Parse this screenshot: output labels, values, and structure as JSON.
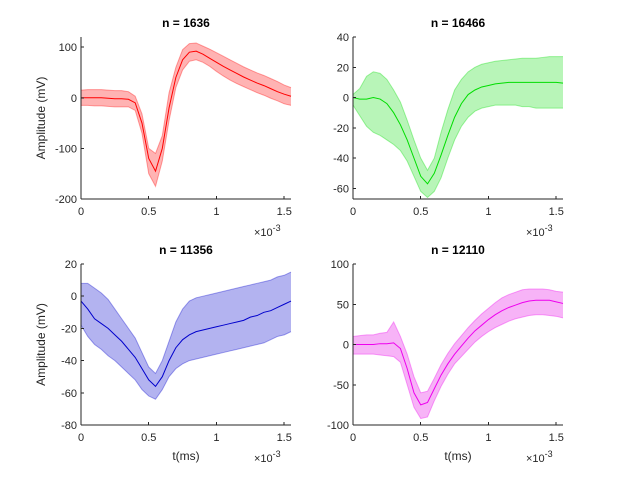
{
  "chart_data": [
    {
      "type": "area",
      "title": "n = 1636",
      "xlabel": "",
      "ylabel": "Amplitude (mV)",
      "x_multiplier": "×10",
      "x_exponent": "-3",
      "xlim": [
        0,
        0.00155
      ],
      "ylim": [
        -200,
        120
      ],
      "xticks": [
        0,
        0.0005,
        0.001,
        0.0015
      ],
      "xticklabels": [
        "0",
        "0.5",
        "1",
        "1.5"
      ],
      "yticks": [
        -200,
        -100,
        0,
        100
      ],
      "yticklabels": [
        "-200",
        "-100",
        "0",
        "100"
      ],
      "color": "#ff0000",
      "fill_color": "#ffb3b3",
      "x": [
        0,
        5e-05,
        0.0001,
        0.00015,
        0.0002,
        0.00025,
        0.0003,
        0.00035,
        0.0004,
        0.00045,
        0.0005,
        0.00055,
        0.0006,
        0.00065,
        0.0007,
        0.00075,
        0.0008,
        0.00085,
        0.0009,
        0.00095,
        0.001,
        0.00105,
        0.0011,
        0.00115,
        0.0012,
        0.00125,
        0.0013,
        0.00135,
        0.0014,
        0.00145,
        0.0015,
        0.00155
      ],
      "mean": [
        0,
        0,
        0,
        0,
        -1,
        -2,
        -2,
        -3,
        -10,
        -50,
        -120,
        -145,
        -100,
        -20,
        40,
        75,
        90,
        92,
        86,
        78,
        70,
        62,
        55,
        48,
        41,
        35,
        29,
        24,
        18,
        12,
        7,
        3
      ],
      "upper": [
        15,
        16,
        16,
        16,
        15,
        14,
        14,
        12,
        3,
        -32,
        -100,
        -110,
        -75,
        10,
        60,
        95,
        107,
        108,
        102,
        96,
        89,
        82,
        75,
        68,
        61,
        55,
        49,
        44,
        38,
        32,
        25,
        20
      ],
      "lower": [
        -15,
        -15,
        -16,
        -16,
        -17,
        -18,
        -18,
        -18,
        -25,
        -70,
        -150,
        -175,
        -125,
        -45,
        20,
        55,
        72,
        75,
        70,
        62,
        52,
        43,
        35,
        28,
        22,
        16,
        10,
        5,
        -1,
        -6,
        -12,
        -15
      ]
    },
    {
      "type": "area",
      "title": "n = 16466",
      "xlabel": "",
      "ylabel": "",
      "x_multiplier": "×10",
      "x_exponent": "-3",
      "xlim": [
        0,
        0.00155
      ],
      "ylim": [
        -67,
        40
      ],
      "xticks": [
        0,
        0.0005,
        0.001,
        0.0015
      ],
      "xticklabels": [
        "0",
        "0.5",
        "1",
        "1.5"
      ],
      "yticks": [
        -60,
        -40,
        -20,
        0,
        20,
        40
      ],
      "yticklabels": [
        "-60",
        "-40",
        "-20",
        "0",
        "20",
        "40"
      ],
      "color": "#00dd00",
      "fill_color": "#b8f5b8",
      "x": [
        0,
        5e-05,
        0.0001,
        0.00015,
        0.0002,
        0.00025,
        0.0003,
        0.00035,
        0.0004,
        0.00045,
        0.0005,
        0.00055,
        0.0006,
        0.00065,
        0.0007,
        0.00075,
        0.0008,
        0.00085,
        0.0009,
        0.00095,
        0.001,
        0.00105,
        0.0011,
        0.00115,
        0.0012,
        0.00125,
        0.0013,
        0.00135,
        0.0014,
        0.00145,
        0.0015,
        0.00155
      ],
      "mean": [
        0,
        -1,
        -1,
        0,
        -1,
        -4,
        -10,
        -18,
        -28,
        -40,
        -52,
        -57,
        -50,
        -38,
        -25,
        -13,
        -4,
        2,
        5,
        7,
        8,
        9,
        9.5,
        10,
        10,
        10,
        10,
        10,
        10,
        10,
        10,
        9.5
      ],
      "upper": [
        2,
        6,
        14,
        17,
        16,
        12,
        5,
        -3,
        -15,
        -28,
        -40,
        -48,
        -40,
        -23,
        -8,
        5,
        12,
        17,
        20,
        22,
        23,
        24,
        24.5,
        25,
        25.5,
        26,
        26,
        26,
        26.5,
        27,
        27,
        27
      ],
      "lower": [
        -5,
        -12,
        -19,
        -23,
        -25,
        -28,
        -31,
        -35,
        -42,
        -52,
        -62,
        -66,
        -62,
        -53,
        -40,
        -28,
        -19,
        -13,
        -9,
        -7,
        -6,
        -5,
        -5,
        -5,
        -5,
        -6,
        -6,
        -7,
        -7,
        -7,
        -7,
        -7
      ]
    },
    {
      "type": "area",
      "title": "n = 11356",
      "xlabel": "t(ms)",
      "ylabel": "Amplitude (mV)",
      "x_multiplier": "×10",
      "x_exponent": "-3",
      "xlim": [
        0,
        0.00155
      ],
      "ylim": [
        -80,
        20
      ],
      "xticks": [
        0,
        0.0005,
        0.001,
        0.0015
      ],
      "xticklabels": [
        "0",
        "0.5",
        "1",
        "1.5"
      ],
      "yticks": [
        -80,
        -60,
        -40,
        -20,
        0,
        20
      ],
      "yticklabels": [
        "-80",
        "-60",
        "-40",
        "-20",
        "0",
        "20"
      ],
      "color": "#0000cc",
      "fill_color": "#b3b3f0",
      "x": [
        0,
        5e-05,
        0.0001,
        0.00015,
        0.0002,
        0.00025,
        0.0003,
        0.00035,
        0.0004,
        0.00045,
        0.0005,
        0.00055,
        0.0006,
        0.00065,
        0.0007,
        0.00075,
        0.0008,
        0.00085,
        0.0009,
        0.00095,
        0.001,
        0.00105,
        0.0011,
        0.00115,
        0.0012,
        0.00125,
        0.0013,
        0.00135,
        0.0014,
        0.00145,
        0.0015,
        0.00155
      ],
      "mean": [
        -3,
        -8,
        -14,
        -17,
        -20,
        -24,
        -28,
        -33,
        -38,
        -45,
        -52,
        -56,
        -50,
        -40,
        -32,
        -27,
        -24,
        -22,
        -21,
        -20,
        -19,
        -18,
        -17,
        -16,
        -15,
        -13,
        -12,
        -10,
        -9,
        -7,
        -5,
        -3
      ],
      "upper": [
        8,
        8,
        5,
        2,
        -2,
        -8,
        -14,
        -20,
        -26,
        -35,
        -44,
        -48,
        -40,
        -28,
        -16,
        -8,
        -3,
        -1,
        0,
        1,
        2,
        3,
        4,
        5,
        6,
        7,
        8,
        9,
        10,
        12,
        13,
        15
      ],
      "lower": [
        -18,
        -25,
        -30,
        -33,
        -37,
        -40,
        -44,
        -48,
        -52,
        -58,
        -62,
        -64,
        -58,
        -50,
        -45,
        -42,
        -40,
        -39,
        -38,
        -37,
        -36,
        -35,
        -34,
        -33,
        -32,
        -31,
        -30,
        -29,
        -27,
        -25,
        -24,
        -22
      ]
    },
    {
      "type": "area",
      "title": "n = 12110",
      "xlabel": "t(ms)",
      "ylabel": "",
      "x_multiplier": "×10",
      "x_exponent": "-3",
      "xlim": [
        0,
        0.00155
      ],
      "ylim": [
        -100,
        100
      ],
      "xticks": [
        0,
        0.0005,
        0.001,
        0.0015
      ],
      "xticklabels": [
        "0",
        "0.5",
        "1",
        "1.5"
      ],
      "yticks": [
        -100,
        -50,
        0,
        50,
        100
      ],
      "yticklabels": [
        "-100",
        "-50",
        "0",
        "50",
        "100"
      ],
      "color": "#ee00ee",
      "fill_color": "#f7b3f7",
      "x": [
        0,
        5e-05,
        0.0001,
        0.00015,
        0.0002,
        0.00025,
        0.0003,
        0.00035,
        0.0004,
        0.00045,
        0.0005,
        0.00055,
        0.0006,
        0.00065,
        0.0007,
        0.00075,
        0.0008,
        0.00085,
        0.0009,
        0.00095,
        0.001,
        0.00105,
        0.0011,
        0.00115,
        0.0012,
        0.00125,
        0.0013,
        0.00135,
        0.0014,
        0.00145,
        0.0015,
        0.00155
      ],
      "mean": [
        0,
        0,
        0,
        0,
        1,
        1,
        2,
        -5,
        -30,
        -60,
        -75,
        -72,
        -55,
        -38,
        -24,
        -12,
        -2,
        8,
        17,
        24,
        31,
        37,
        42,
        46,
        49,
        52,
        54,
        55,
        55,
        55,
        53,
        51
      ],
      "upper": [
        10,
        11,
        12,
        12,
        14,
        15,
        28,
        10,
        -12,
        -40,
        -60,
        -58,
        -42,
        -25,
        -11,
        1,
        11,
        21,
        30,
        38,
        45,
        52,
        58,
        62,
        65,
        68,
        69,
        69,
        69,
        68,
        66,
        65
      ],
      "lower": [
        -12,
        -12,
        -12,
        -12,
        -13,
        -14,
        -15,
        -22,
        -50,
        -78,
        -92,
        -90,
        -70,
        -52,
        -37,
        -24,
        -15,
        -6,
        3,
        10,
        16,
        21,
        25,
        29,
        32,
        34,
        36,
        37,
        37,
        36,
        35,
        33
      ]
    }
  ]
}
